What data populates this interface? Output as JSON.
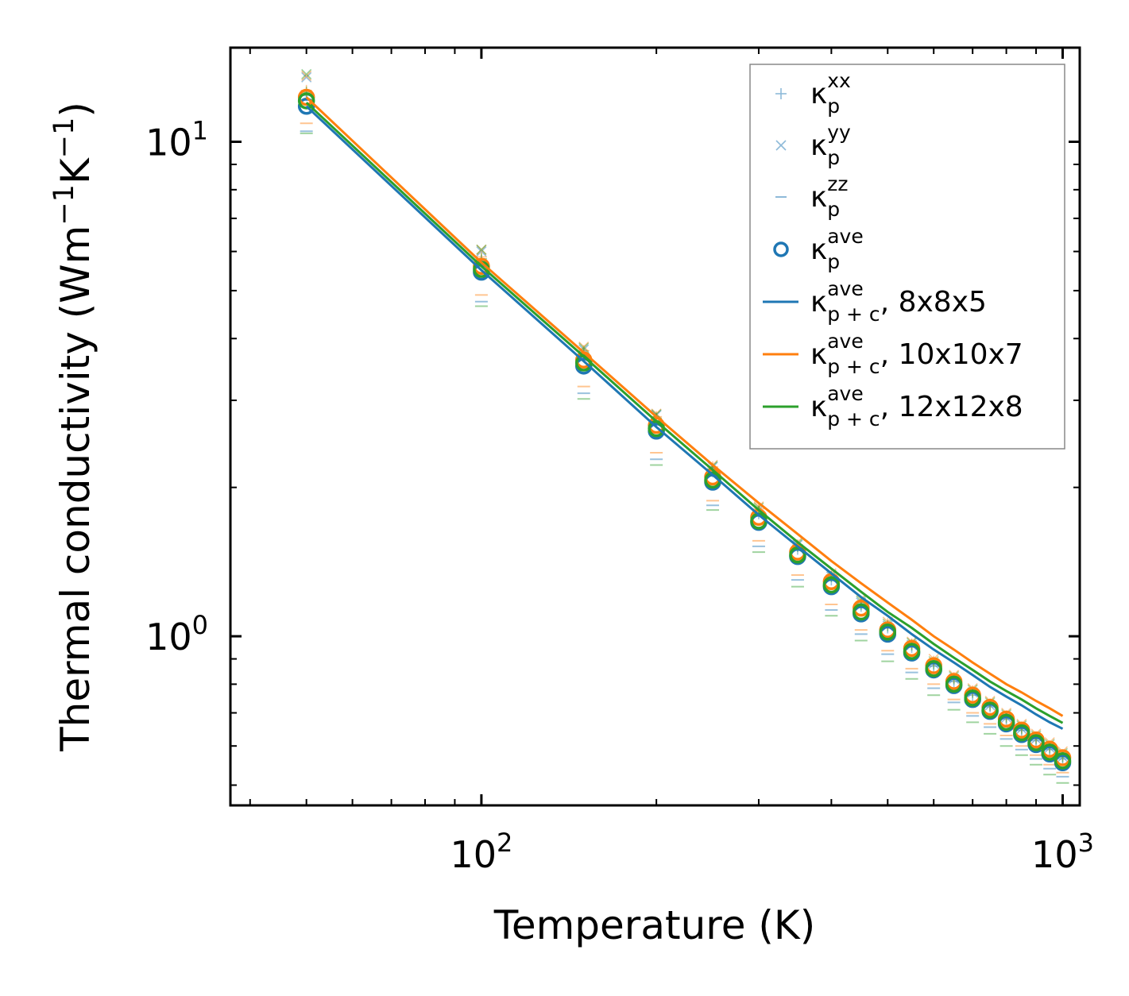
{
  "chart_data": {
    "type": "scatter",
    "xscale": "log",
    "yscale": "log",
    "xlim": [
      37,
      1070
    ],
    "ylim": [
      0.455,
      15.5
    ],
    "xlabel": "Temperature (K)",
    "ylabel": {
      "base": "Thermal conductivity (Wm",
      "exp1": "−1",
      "mid": "K",
      "exp2": "−1",
      "end": ")"
    },
    "xticks": [
      {
        "value": 100,
        "base": "10",
        "exp": "2"
      },
      {
        "value": 1000,
        "base": "10",
        "exp": "3"
      }
    ],
    "yticks": [
      {
        "value": 1,
        "base": "10",
        "exp": "0"
      },
      {
        "value": 10,
        "base": "10",
        "exp": "1"
      }
    ],
    "legend_position": "top-right",
    "x": [
      50,
      100,
      150,
      200,
      250,
      300,
      350,
      400,
      450,
      500,
      550,
      600,
      650,
      700,
      750,
      800,
      850,
      900,
      950,
      1000
    ],
    "meshes": [
      {
        "name": "8x8x5",
        "color": "#1f77b4",
        "xx": [
          12.4,
          5.75,
          3.7,
          2.72,
          2.15,
          1.77,
          1.5,
          1.3,
          1.15,
          1.04,
          0.95,
          0.87,
          0.81,
          0.76,
          0.72,
          0.68,
          0.645,
          0.615,
          0.59,
          0.565
        ],
        "yy": [
          13.5,
          6.0,
          3.8,
          2.8,
          2.2,
          1.8,
          1.53,
          1.32,
          1.17,
          1.05,
          0.96,
          0.88,
          0.82,
          0.77,
          0.725,
          0.685,
          0.65,
          0.62,
          0.595,
          0.57
        ],
        "zz": [
          10.5,
          4.75,
          3.1,
          2.28,
          1.84,
          1.52,
          1.3,
          1.13,
          1.01,
          0.92,
          0.845,
          0.785,
          0.735,
          0.69,
          0.655,
          0.62,
          0.59,
          0.565,
          0.54,
          0.52
        ],
        "ave": [
          11.8,
          5.45,
          3.52,
          2.6,
          2.05,
          1.7,
          1.45,
          1.26,
          1.11,
          1.01,
          0.925,
          0.855,
          0.795,
          0.745,
          0.705,
          0.665,
          0.633,
          0.604,
          0.578,
          0.555
        ],
        "fit": [
          11.8,
          5.5,
          3.6,
          2.65,
          2.12,
          1.76,
          1.52,
          1.34,
          1.2,
          1.1,
          1.01,
          0.94,
          0.885,
          0.835,
          0.79,
          0.755,
          0.725,
          0.695,
          0.67,
          0.65
        ]
      },
      {
        "name": "10x10x7",
        "color": "#ff7f0e",
        "xx": [
          12.7,
          5.85,
          3.78,
          2.78,
          2.2,
          1.81,
          1.53,
          1.33,
          1.17,
          1.06,
          0.965,
          0.89,
          0.825,
          0.775,
          0.73,
          0.69,
          0.655,
          0.625,
          0.6,
          0.575
        ],
        "yy": [
          13.6,
          6.05,
          3.85,
          2.82,
          2.22,
          1.83,
          1.55,
          1.34,
          1.19,
          1.07,
          0.975,
          0.9,
          0.835,
          0.785,
          0.74,
          0.7,
          0.665,
          0.635,
          0.61,
          0.585
        ],
        "zz": [
          10.9,
          4.9,
          3.2,
          2.35,
          1.88,
          1.56,
          1.33,
          1.16,
          1.03,
          0.935,
          0.86,
          0.8,
          0.745,
          0.7,
          0.665,
          0.63,
          0.6,
          0.575,
          0.55,
          0.53
        ],
        "ave": [
          12.3,
          5.6,
          3.62,
          2.67,
          2.1,
          1.74,
          1.48,
          1.29,
          1.14,
          1.03,
          0.945,
          0.872,
          0.81,
          0.76,
          0.718,
          0.68,
          0.646,
          0.617,
          0.591,
          0.568
        ],
        "fit": [
          12.3,
          5.7,
          3.75,
          2.78,
          2.22,
          1.86,
          1.61,
          1.42,
          1.28,
          1.17,
          1.08,
          1.0,
          0.94,
          0.885,
          0.84,
          0.8,
          0.77,
          0.74,
          0.715,
          0.69
        ]
      },
      {
        "name": "12x12x8",
        "color": "#2ca02c",
        "xx": [
          12.6,
          5.8,
          3.74,
          2.76,
          2.18,
          1.79,
          1.52,
          1.32,
          1.16,
          1.05,
          0.96,
          0.88,
          0.82,
          0.77,
          0.725,
          0.685,
          0.65,
          0.62,
          0.595,
          0.57
        ],
        "yy": [
          13.7,
          6.05,
          3.83,
          2.81,
          2.21,
          1.82,
          1.54,
          1.33,
          1.18,
          1.06,
          0.97,
          0.89,
          0.83,
          0.78,
          0.735,
          0.695,
          0.66,
          0.63,
          0.605,
          0.58
        ],
        "zz": [
          10.4,
          4.65,
          3.02,
          2.22,
          1.8,
          1.48,
          1.26,
          1.1,
          0.98,
          0.89,
          0.82,
          0.76,
          0.71,
          0.67,
          0.635,
          0.6,
          0.575,
          0.55,
          0.525,
          0.505
        ],
        "ave": [
          12.1,
          5.52,
          3.57,
          2.63,
          2.07,
          1.71,
          1.46,
          1.27,
          1.12,
          1.02,
          0.932,
          0.86,
          0.8,
          0.75,
          0.709,
          0.67,
          0.638,
          0.609,
          0.583,
          0.56
        ],
        "fit": [
          12.0,
          5.6,
          3.68,
          2.72,
          2.17,
          1.8,
          1.55,
          1.37,
          1.23,
          1.12,
          1.04,
          0.965,
          0.905,
          0.855,
          0.81,
          0.775,
          0.745,
          0.715,
          0.69,
          0.668
        ]
      }
    ],
    "legend": [
      {
        "kind": "plus",
        "color": "#1f77b4",
        "sym": "κ",
        "sub": "p",
        "sup": "xx",
        "suffix": ""
      },
      {
        "kind": "cross",
        "color": "#1f77b4",
        "sym": "κ",
        "sub": "p",
        "sup": "yy",
        "suffix": ""
      },
      {
        "kind": "dash",
        "color": "#1f77b4",
        "sym": "κ",
        "sub": "p",
        "sup": "zz",
        "suffix": ""
      },
      {
        "kind": "circle",
        "color": "#1f77b4",
        "sym": "κ",
        "sub": "p",
        "sup": "ave",
        "suffix": ""
      },
      {
        "kind": "line",
        "color": "#1f77b4",
        "sym": "κ",
        "sub": "p + c",
        "sup": "ave",
        "suffix": ", 8x8x5"
      },
      {
        "kind": "line",
        "color": "#ff7f0e",
        "sym": "κ",
        "sub": "p + c",
        "sup": "ave",
        "suffix": ", 10x10x7"
      },
      {
        "kind": "line",
        "color": "#2ca02c",
        "sym": "κ",
        "sub": "p + c",
        "sup": "ave",
        "suffix": ", 12x12x8"
      }
    ]
  }
}
